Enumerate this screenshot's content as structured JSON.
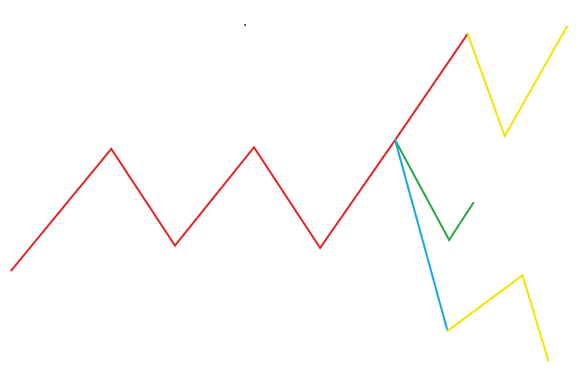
{
  "colors": {
    "background": "#ffffff",
    "main_path": "#e0282b",
    "bull_branch": "#f4e400",
    "bear_branch": "#f4e400",
    "green_branch": "#2aa84a",
    "blue_branch": "#1aa6e4",
    "dot": "#000000"
  }
}
